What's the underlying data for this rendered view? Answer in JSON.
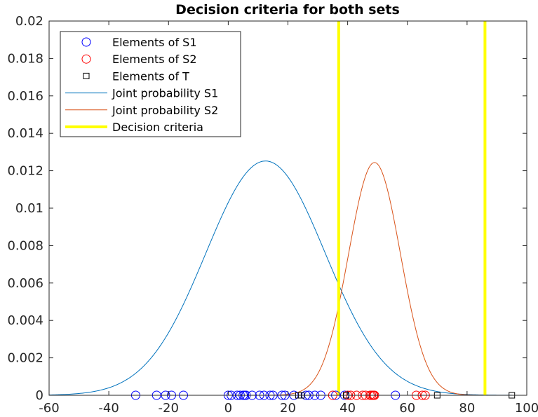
{
  "chart_data": {
    "type": "line",
    "title": "Decision criteria for both sets",
    "xlabel": "",
    "ylabel": "",
    "xlim": [
      -60,
      100
    ],
    "ylim": [
      0,
      0.02
    ],
    "x_ticks": [
      -60,
      -40,
      -20,
      0,
      20,
      40,
      60,
      80,
      100
    ],
    "y_ticks": [
      0,
      0.002,
      0.004,
      0.006,
      0.008,
      0.01,
      0.012,
      0.014,
      0.016,
      0.018,
      0.02
    ],
    "x_tick_labels": [
      "-60",
      "-40",
      "-20",
      "0",
      "20",
      "40",
      "60",
      "80",
      "100"
    ],
    "y_tick_labels": [
      "0",
      "0.002",
      "0.004",
      "0.006",
      "0.008",
      "0.01",
      "0.012",
      "0.014",
      "0.016",
      "0.018",
      "0.02"
    ],
    "grid": false,
    "legend_position": "top-left",
    "series": [
      {
        "name": "Elements of S1",
        "kind": "scatter",
        "marker": "circle",
        "color": "#0000ff",
        "x": [
          -31,
          -24,
          -21,
          -19,
          -15,
          0,
          1,
          3,
          4,
          5,
          5.5,
          6,
          8,
          10.5,
          12,
          14,
          15,
          18,
          19,
          22,
          26,
          27,
          29,
          31,
          36,
          39,
          56
        ],
        "y": [
          0,
          0,
          0,
          0,
          0,
          0,
          0,
          0,
          0,
          0,
          0,
          0,
          0,
          0,
          0,
          0,
          0,
          0,
          0,
          0,
          0,
          0,
          0,
          0,
          0,
          0,
          0
        ]
      },
      {
        "name": "Elements of S2",
        "kind": "scatter",
        "marker": "circle",
        "color": "#ff0000",
        "x": [
          35,
          40,
          41,
          43,
          45,
          46,
          47.5,
          48,
          48.5,
          48.7,
          49,
          63,
          65,
          66
        ],
        "y": [
          0,
          0,
          0,
          0,
          0,
          0,
          0,
          0,
          0,
          0,
          0,
          0,
          0,
          0
        ]
      },
      {
        "name": "Elements of T",
        "kind": "scatter",
        "marker": "square",
        "color": "#000000",
        "x": [
          23.5,
          24.5,
          39.5,
          70,
          95
        ],
        "y": [
          0,
          0,
          0,
          0,
          0
        ]
      },
      {
        "name": "Joint probability S1",
        "kind": "line",
        "color": "#0072bd",
        "gaussian": {
          "mu": 12.5,
          "sigma": 20,
          "peak": 0.01252
        }
      },
      {
        "name": "Joint probability S2",
        "kind": "line",
        "color": "#d95319",
        "gaussian": {
          "mu": 49,
          "sigma": 8.7,
          "peak": 0.01244
        }
      },
      {
        "name": "Decision criteria",
        "kind": "vline",
        "color": "#ffff00",
        "x": [
          37,
          86
        ]
      }
    ]
  }
}
